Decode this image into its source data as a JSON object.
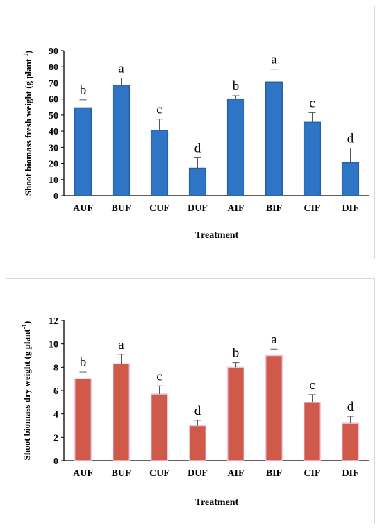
{
  "chart_data": [
    {
      "type": "bar",
      "categories": [
        "AUF",
        "BUF",
        "CUF",
        "DUF",
        "AIF",
        "BIF",
        "CIF",
        "DIF"
      ],
      "values": [
        54.5,
        68.5,
        40.5,
        17,
        60,
        70.5,
        45.5,
        20.5
      ],
      "errors": [
        5,
        4.5,
        7,
        6.5,
        2,
        8,
        6,
        9
      ],
      "letters": [
        "b",
        "a",
        "c",
        "d",
        "b",
        "a",
        "c",
        "d"
      ],
      "xlabel": "Treatment",
      "ylabel": "Shoot biomass fresh weight (g plant",
      "ylabel_sup": "-1",
      "ylabel_end": ")",
      "ylim": [
        0,
        90
      ],
      "yticks": [
        0,
        10,
        20,
        30,
        40,
        50,
        60,
        70,
        80,
        90
      ],
      "grid": false,
      "legend": "none",
      "bar_color": "#2e75c6",
      "bar_edge": "#2a5fa8"
    },
    {
      "type": "bar",
      "categories": [
        "AUF",
        "BUF",
        "CUF",
        "DUF",
        "AIF",
        "BIF",
        "CIF",
        "DIF"
      ],
      "values": [
        7,
        8.3,
        5.7,
        3,
        8,
        9,
        5,
        3.2
      ],
      "errors": [
        0.6,
        0.8,
        0.7,
        0.45,
        0.4,
        0.55,
        0.65,
        0.6
      ],
      "letters": [
        "b",
        "a",
        "c",
        "d",
        "b",
        "a",
        "c",
        "d"
      ],
      "xlabel": "Treatment",
      "ylabel": "Shoot biomass dry weight  (g plant",
      "ylabel_sup": "-1",
      "ylabel_end": ")",
      "ylim": [
        0,
        12
      ],
      "yticks": [
        0,
        2,
        4,
        6,
        8,
        10,
        12
      ],
      "grid": false,
      "legend": "none",
      "bar_color": "#d05a4a",
      "bar_edge": "#f2c4da"
    }
  ]
}
